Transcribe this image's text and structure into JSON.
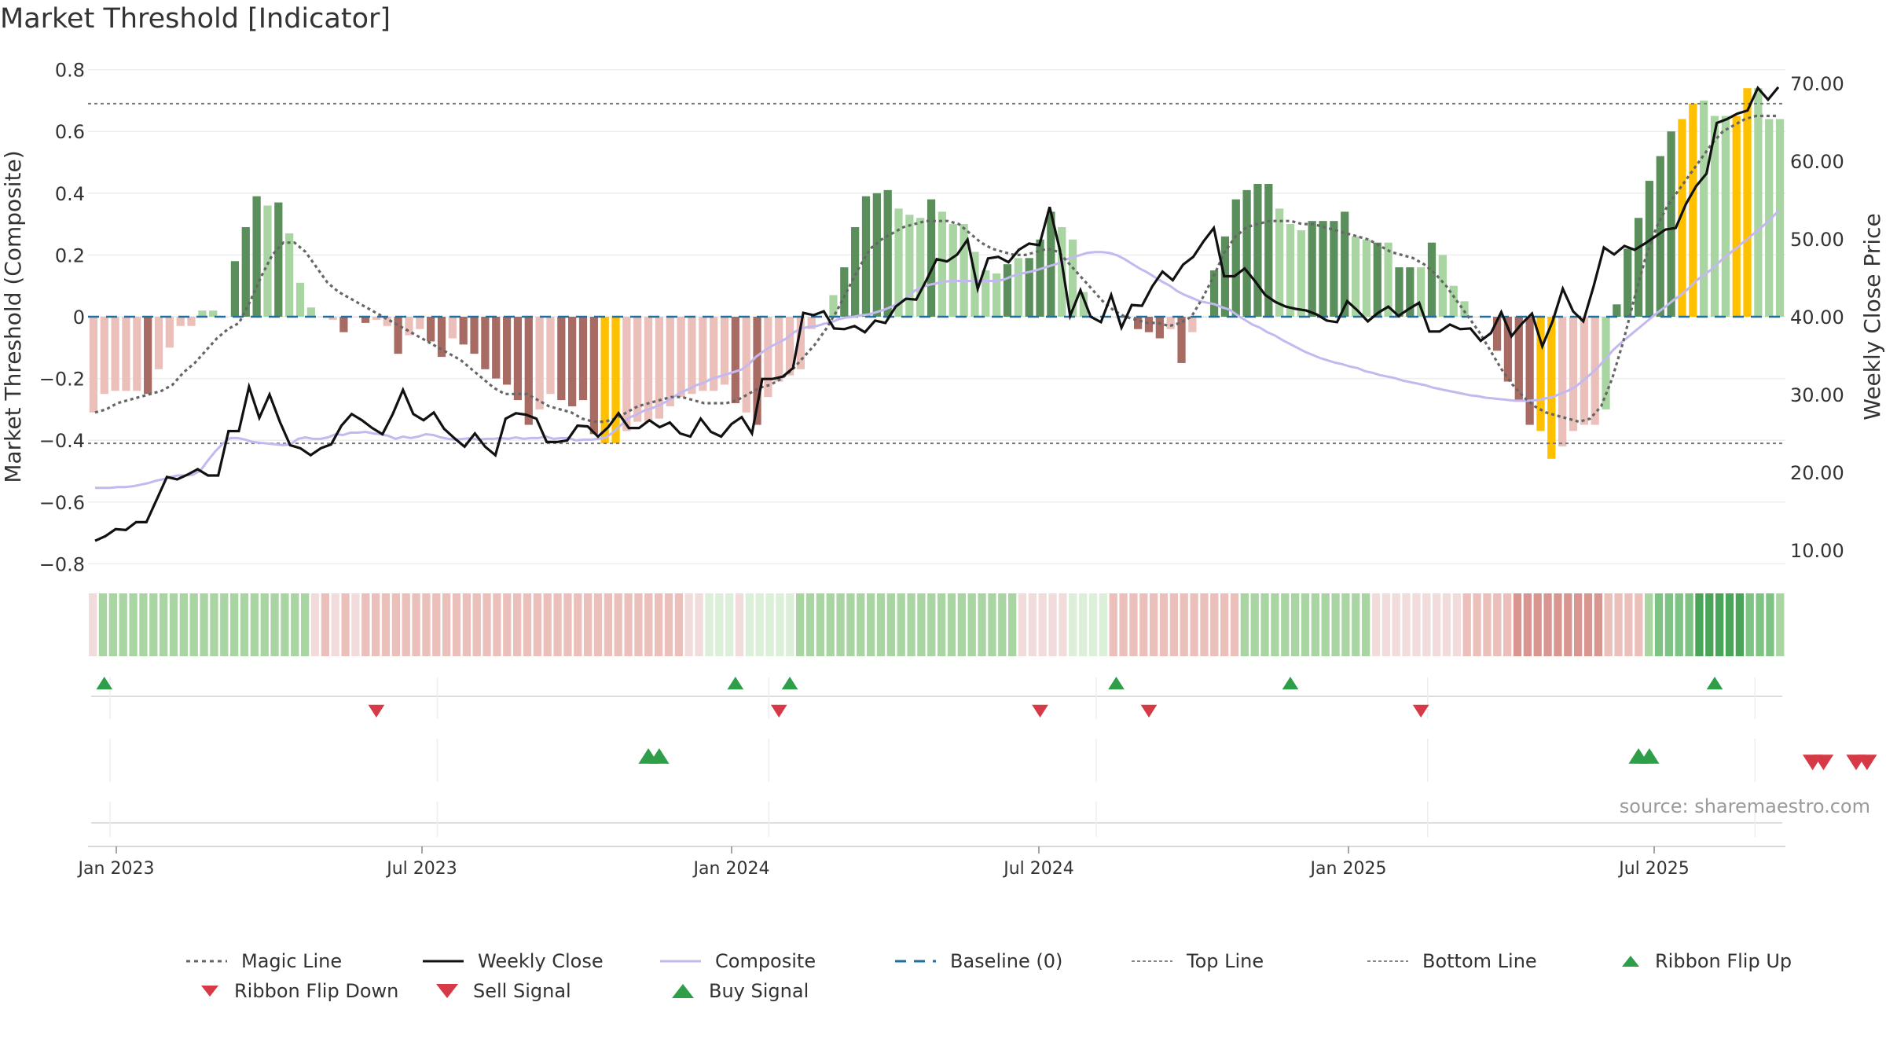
{
  "title": "Market Threshold [Indicator]",
  "source": "source: sharemaestro.com",
  "colors": {
    "dark_green": "#5a8f5c",
    "light_green": "#a8d5a2",
    "dark_red": "#a86b64",
    "light_red": "#ecc0ba",
    "yellow": "#ffc000",
    "magic": "#666666",
    "close": "#111111",
    "composite": "#c3b9ef",
    "baseline": "#1f6f9f",
    "buy": "#2e9e48",
    "sell": "#d63a46"
  },
  "chart_data": {
    "type": "bar",
    "ylabel": "Market Threshold (Composite)",
    "ylabel_right": "Weekly Close Price",
    "left_ticks": [
      "0.8",
      "0.6",
      "0.4",
      "0.2",
      "0",
      "−0.2",
      "−0.4",
      "−0.6",
      "−0.8"
    ],
    "right_ticks": [
      "70.00",
      "60.00",
      "50.00",
      "40.00",
      "30.00",
      "20.00",
      "10.00"
    ],
    "x_ticks": [
      "Jan 2023",
      "Jul 2023",
      "Jan 2024",
      "Jul 2024",
      "Jan 2025",
      "Jul 2025"
    ],
    "top_line": 0.69,
    "bottom_line": -0.41,
    "composite_bars": [
      -0.31,
      -0.25,
      -0.24,
      -0.24,
      -0.24,
      -0.25,
      -0.17,
      -0.1,
      -0.03,
      -0.03,
      0.02,
      0.02,
      0.0,
      0.18,
      0.29,
      0.39,
      0.36,
      0.37,
      0.27,
      0.11,
      0.03,
      0.0,
      -0.01,
      -0.05,
      0.0,
      -0.02,
      -0.01,
      -0.03,
      -0.12,
      -0.06,
      -0.04,
      -0.08,
      -0.13,
      -0.07,
      -0.09,
      -0.12,
      -0.17,
      -0.2,
      -0.22,
      -0.27,
      -0.35,
      -0.3,
      -0.25,
      -0.27,
      -0.29,
      -0.27,
      -0.38,
      -0.41,
      -0.41,
      -0.37,
      -0.34,
      -0.34,
      -0.33,
      -0.29,
      -0.26,
      -0.25,
      -0.24,
      -0.24,
      -0.22,
      -0.28,
      -0.31,
      -0.35,
      -0.26,
      -0.21,
      -0.19,
      -0.17,
      -0.04,
      0.0,
      0.07,
      0.16,
      0.29,
      0.39,
      0.4,
      0.41,
      0.35,
      0.33,
      0.32,
      0.38,
      0.34,
      0.3,
      0.3,
      0.21,
      0.15,
      0.14,
      0.17,
      0.19,
      0.19,
      0.25,
      0.34,
      0.29,
      0.25,
      0.08,
      0.0,
      0.0,
      0.0,
      0.0,
      -0.04,
      -0.05,
      -0.07,
      -0.04,
      -0.15,
      -0.05,
      0.0,
      0.15,
      0.26,
      0.38,
      0.41,
      0.43,
      0.43,
      0.35,
      0.3,
      0.28,
      0.31,
      0.31,
      0.31,
      0.34,
      0.26,
      0.25,
      0.24,
      0.24,
      0.16,
      0.16,
      0.16,
      0.24,
      0.2,
      0.1,
      0.05,
      0.0,
      0.0,
      -0.11,
      -0.21,
      -0.27,
      -0.35,
      -0.37,
      -0.46,
      -0.42,
      -0.37,
      -0.35,
      -0.35,
      -0.3,
      0.04,
      0.22,
      0.32,
      0.44,
      0.52,
      0.6,
      0.64,
      0.69,
      0.7,
      0.65,
      0.65,
      0.65,
      0.74,
      0.74,
      0.64,
      0.64
    ],
    "bar_colors": [
      "lr",
      "lr",
      "lr",
      "lr",
      "lr",
      "dr",
      "lr",
      "lr",
      "lr",
      "lr",
      "lg",
      "lg",
      "lg",
      "dg",
      "dg",
      "dg",
      "lg",
      "dg",
      "lg",
      "lg",
      "lg",
      "lr",
      "lr",
      "dr",
      "lr",
      "dr",
      "lr",
      "lr",
      "dr",
      "lr",
      "lr",
      "dr",
      "dr",
      "lr",
      "dr",
      "dr",
      "dr",
      "dr",
      "dr",
      "dr",
      "dr",
      "lr",
      "lr",
      "dr",
      "dr",
      "dr",
      "dr",
      "y",
      "y",
      "lr",
      "lr",
      "lr",
      "lr",
      "lr",
      "lr",
      "lr",
      "lr",
      "lr",
      "lr",
      "dr",
      "lr",
      "dr",
      "lr",
      "lr",
      "lr",
      "lr",
      "lr",
      "lr",
      "lg",
      "dg",
      "dg",
      "dg",
      "dg",
      "dg",
      "lg",
      "lg",
      "lg",
      "dg",
      "lg",
      "lg",
      "lg",
      "lg",
      "lg",
      "lg",
      "dg",
      "lg",
      "dg",
      "dg",
      "dg",
      "lg",
      "lg",
      "lg",
      "lg",
      "lg",
      "lg",
      "lg",
      "dr",
      "dr",
      "dr",
      "lr",
      "dr",
      "lr",
      "lg",
      "dg",
      "dg",
      "dg",
      "dg",
      "dg",
      "dg",
      "lg",
      "lg",
      "lg",
      "dg",
      "dg",
      "dg",
      "dg",
      "lg",
      "lg",
      "dg",
      "lg",
      "dg",
      "dg",
      "lg",
      "dg",
      "lg",
      "lg",
      "lg",
      "lg",
      "dr",
      "dr",
      "dr",
      "dr",
      "dr",
      "y",
      "y",
      "lr",
      "lr",
      "lr",
      "lr",
      "lg",
      "dg",
      "dg",
      "dg",
      "dg",
      "dg",
      "dg",
      "y",
      "y",
      "lg",
      "lg",
      "lg",
      "y",
      "y",
      "lg",
      "lg"
    ],
    "weekly_close": [
      11.2,
      11.8,
      12.7,
      12.6,
      13.6,
      13.6,
      16.5,
      19.4,
      19.1,
      19.7,
      20.4,
      19.6,
      19.6,
      25.3,
      25.3,
      31.0,
      27.0,
      30.0,
      26.5,
      23.5,
      23.1,
      22.2,
      23.1,
      23.6,
      26.0,
      27.5,
      26.7,
      25.7,
      24.9,
      27.5,
      30.6,
      27.5,
      26.7,
      27.7,
      25.6,
      24.4,
      23.3,
      25.0,
      23.3,
      22.2,
      26.9,
      27.6,
      27.4,
      26.9,
      23.9,
      23.9,
      24.1,
      26.0,
      25.9,
      24.6,
      25.8,
      27.6,
      25.7,
      25.7,
      26.7,
      25.8,
      26.4,
      25.0,
      24.6,
      26.9,
      25.2,
      24.6,
      26.2,
      27.1,
      25.0,
      32.0,
      32.0,
      32.3,
      33.4,
      40.5,
      40.2,
      40.7,
      38.5,
      38.4,
      38.8,
      38.0,
      39.5,
      39.2,
      41.3,
      42.3,
      42.2,
      44.7,
      47.4,
      47.1,
      48.0,
      49.9,
      43.6,
      47.5,
      47.7,
      47.0,
      48.6,
      49.4,
      49.2,
      54.1,
      48.6,
      40.1,
      43.4,
      40.0,
      39.3,
      42.8,
      38.6,
      41.5,
      41.4,
      43.9,
      45.8,
      44.7,
      46.7,
      47.7,
      49.7,
      51.4,
      45.2,
      45.2,
      46.2,
      44.6,
      42.8,
      41.9,
      41.3,
      41.0,
      40.8,
      40.3,
      39.5,
      39.3,
      42.0,
      40.8,
      39.4,
      40.5,
      41.3,
      40.1,
      41.0,
      41.8,
      38.1,
      38.1,
      39.0,
      38.4,
      38.5,
      36.9,
      37.9,
      40.6,
      37.5,
      39.1,
      40.4,
      36.2,
      39.4,
      43.6,
      40.7,
      39.4,
      43.9,
      48.9,
      48.0,
      49.1,
      48.6,
      49.4,
      50.3,
      51.2,
      51.4,
      54.5,
      56.8,
      58.4,
      64.9,
      65.4,
      66.1,
      66.5,
      69.4,
      67.9,
      69.5
    ],
    "composite_line": [
      18.0,
      18.0,
      18.0,
      18.1,
      18.1,
      18.2,
      18.4,
      18.6,
      18.9,
      19.1,
      19.4,
      19.6,
      19.6,
      19.7,
      20.2,
      21.5,
      22.7,
      23.7,
      24.4,
      24.4,
      24.2,
      23.9,
      23.8,
      23.7,
      23.6,
      23.5,
      23.6,
      24.3,
      24.5,
      24.3,
      24.3,
      24.5,
      24.9,
      24.8,
      25.1,
      25.1,
      25.2,
      25.0,
      24.9,
      24.7,
      24.3,
      24.6,
      24.4,
      24.6,
      24.9,
      24.8,
      24.5,
      24.3,
      24.2,
      24.3,
      24.4,
      24.2,
      24.3,
      24.3,
      24.4,
      24.3,
      24.5,
      24.3,
      24.4,
      24.4,
      24.6,
      24.3,
      24.4,
      24.4,
      24.1,
      24.2,
      24.2,
      24.3,
      24.5,
      25.2,
      26.1,
      27.0,
      27.4,
      27.9,
      28.2,
      28.6,
      29.1,
      29.7,
      30.3,
      30.7,
      31.2,
      31.5,
      32.0,
      32.3,
      32.6,
      32.9,
      33.2,
      33.9,
      34.9,
      35.6,
      36.2,
      36.7,
      37.2,
      38.0,
      38.5,
      38.7,
      38.8,
      39.1,
      39.3,
      39.7,
      39.9,
      40.0,
      40.2,
      40.3,
      40.6,
      40.9,
      41.3,
      41.8,
      42.4,
      43.3,
      43.8,
      44.1,
      44.3,
      44.5,
      44.6,
      44.6,
      44.6,
      44.6,
      44.6,
      44.6,
      44.6,
      44.8,
      45.2,
      45.5,
      45.7,
      45.9,
      46.2,
      46.5,
      46.8,
      47.3,
      47.6,
      47.9,
      48.2,
      48.3,
      48.3,
      48.2,
      47.9,
      47.4,
      46.8,
      46.2,
      45.7,
      45.1,
      44.5,
      44.0,
      43.3,
      42.8,
      42.4,
      42.0,
      41.8,
      41.6,
      41.2,
      40.9,
      40.2,
      39.6,
      39.0,
      38.6,
      38.0,
      37.6,
      37.0,
      36.5,
      36.0,
      35.5,
      35.1,
      34.7,
      34.4,
      34.1,
      33.9,
      33.6,
      33.4,
      33.0,
      32.8,
      32.5,
      32.3,
      32.1,
      31.8,
      31.6,
      31.4,
      31.2,
      30.9,
      30.7,
      30.5,
      30.3,
      30.1,
      29.9,
      29.8,
      29.6,
      29.5,
      29.4,
      29.3,
      29.2,
      29.2,
      29.2,
      29.3,
      29.5,
      29.7,
      30.1,
      30.5,
      31.0,
      31.8,
      32.6,
      33.5,
      34.6,
      35.7,
      36.6,
      37.4,
      38.2,
      39.0,
      39.8,
      40.6,
      41.3,
      42.1,
      42.8,
      43.6,
      44.6,
      45.3,
      46.0,
      46.9,
      47.8,
      48.5,
      49.3,
      50.1,
      50.9,
      51.7,
      52.6,
      53.6
    ],
    "magic_line": [
      -0.31,
      -0.3,
      -0.28,
      -0.27,
      -0.26,
      -0.25,
      -0.24,
      -0.22,
      -0.18,
      -0.15,
      -0.11,
      -0.07,
      -0.04,
      -0.02,
      0.05,
      0.13,
      0.2,
      0.24,
      0.24,
      0.21,
      0.16,
      0.11,
      0.08,
      0.06,
      0.04,
      0.02,
      0.0,
      -0.02,
      -0.04,
      -0.06,
      -0.08,
      -0.1,
      -0.12,
      -0.14,
      -0.17,
      -0.2,
      -0.23,
      -0.25,
      -0.25,
      -0.25,
      -0.27,
      -0.29,
      -0.3,
      -0.31,
      -0.33,
      -0.34,
      -0.34,
      -0.33,
      -0.31,
      -0.29,
      -0.28,
      -0.27,
      -0.26,
      -0.26,
      -0.27,
      -0.28,
      -0.28,
      -0.28,
      -0.27,
      -0.25,
      -0.23,
      -0.22,
      -0.2,
      -0.17,
      -0.13,
      -0.09,
      -0.04,
      0.02,
      0.09,
      0.16,
      0.22,
      0.25,
      0.27,
      0.29,
      0.3,
      0.31,
      0.31,
      0.31,
      0.3,
      0.27,
      0.24,
      0.22,
      0.21,
      0.2,
      0.2,
      0.21,
      0.22,
      0.21,
      0.17,
      0.13,
      0.09,
      0.05,
      0.02,
      0.0,
      -0.01,
      -0.02,
      -0.02,
      -0.03,
      -0.02,
      0.0,
      0.06,
      0.13,
      0.21,
      0.26,
      0.29,
      0.3,
      0.31,
      0.31,
      0.31,
      0.3,
      0.3,
      0.29,
      0.28,
      0.27,
      0.26,
      0.25,
      0.23,
      0.21,
      0.2,
      0.19,
      0.17,
      0.14,
      0.1,
      0.05,
      0.0,
      -0.05,
      -0.11,
      -0.17,
      -0.22,
      -0.26,
      -0.29,
      -0.31,
      -0.32,
      -0.33,
      -0.34,
      -0.33,
      -0.29,
      -0.2,
      -0.08,
      0.06,
      0.19,
      0.29,
      0.36,
      0.41,
      0.46,
      0.51,
      0.56,
      0.6,
      0.62,
      0.64,
      0.65,
      0.65,
      0.65
    ],
    "ribbon_colors": [
      "#f2dcdb",
      "#a8d5a2",
      "#a8d5a2",
      "#a8d5a2",
      "#a8d5a2",
      "#a8d5a2",
      "#a8d5a2",
      "#a8d5a2",
      "#a8d5a2",
      "#a8d5a2",
      "#a8d5a2",
      "#a8d5a2",
      "#a8d5a2",
      "#a8d5a2",
      "#a8d5a2",
      "#a8d5a2",
      "#a8d5a2",
      "#a8d5a2",
      "#a8d5a2",
      "#a8d5a2",
      "#a8d5a2",
      "#a8d5a2",
      "#f2dcdb",
      "#ecc0ba",
      "#f2dcdb",
      "#ecc0ba",
      "#f2dcdb",
      "#ecc0ba",
      "#ecc0ba",
      "#ecc0ba",
      "#ecc0ba",
      "#ecc0ba",
      "#ecc0ba",
      "#ecc0ba",
      "#ecc0ba",
      "#ecc0ba",
      "#ecc0ba",
      "#ecc0ba",
      "#ecc0ba",
      "#ecc0ba",
      "#ecc0ba",
      "#ecc0ba",
      "#ecc0ba",
      "#ecc0ba",
      "#ecc0ba",
      "#ecc0ba",
      "#ecc0ba",
      "#ecc0ba",
      "#ecc0ba",
      "#ecc0ba",
      "#ecc0ba",
      "#ecc0ba",
      "#ecc0ba",
      "#ecc0ba",
      "#ecc0ba",
      "#ecc0ba",
      "#ecc0ba",
      "#ecc0ba",
      "#ecc0ba",
      "#f2dcdb",
      "#f2dcdb",
      "#dcefd9",
      "#dcefd9",
      "#dcefd9",
      "#f2dcdb",
      "#dcefd9",
      "#dcefd9",
      "#dcefd9",
      "#dcefd9",
      "#dcefd9",
      "#a8d5a2",
      "#a8d5a2",
      "#a8d5a2",
      "#a8d5a2",
      "#a8d5a2",
      "#a8d5a2",
      "#a8d5a2",
      "#a8d5a2",
      "#a8d5a2",
      "#a8d5a2",
      "#a8d5a2",
      "#a8d5a2",
      "#a8d5a2",
      "#a8d5a2",
      "#a8d5a2",
      "#a8d5a2",
      "#a8d5a2",
      "#a8d5a2",
      "#a8d5a2",
      "#a8d5a2",
      "#a8d5a2",
      "#a8d5a2",
      "#f2dcdb",
      "#f2dcdb",
      "#f2dcdb",
      "#f2dcdb",
      "#f2dcdb",
      "#dcefd9",
      "#dcefd9",
      "#dcefd9",
      "#dcefd9",
      "#ecc0ba",
      "#ecc0ba",
      "#ecc0ba",
      "#ecc0ba",
      "#ecc0ba",
      "#ecc0ba",
      "#ecc0ba",
      "#ecc0ba",
      "#ecc0ba",
      "#ecc0ba",
      "#ecc0ba",
      "#ecc0ba",
      "#ecc0ba",
      "#a8d5a2",
      "#a8d5a2",
      "#a8d5a2",
      "#a8d5a2",
      "#a8d5a2",
      "#a8d5a2",
      "#a8d5a2",
      "#a8d5a2",
      "#a8d5a2",
      "#a8d5a2",
      "#a8d5a2",
      "#a8d5a2",
      "#a8d5a2",
      "#f2dcdb",
      "#f2dcdb",
      "#f2dcdb",
      "#f2dcdb",
      "#f2dcdb",
      "#f2dcdb",
      "#f2dcdb",
      "#f2dcdb",
      "#f2dcdb",
      "#ecc0ba",
      "#ecc0ba",
      "#ecc0ba",
      "#ecc0ba",
      "#ecc0ba",
      "#d99690",
      "#d99690",
      "#d99690",
      "#d99690",
      "#d99690",
      "#d99690",
      "#d99690",
      "#d99690",
      "#d99690",
      "#ecc0ba",
      "#ecc0ba",
      "#ecc0ba",
      "#ecc0ba",
      "#a8d5a2",
      "#7dc383",
      "#7dc383",
      "#7dc383",
      "#7dc383",
      "#4aa55a",
      "#4aa55a",
      "#4aa55a",
      "#4aa55a",
      "#4aa55a",
      "#7dc383",
      "#7dc383",
      "#7dc383",
      "#a8d5a2"
    ],
    "ribbon_flip_up": [
      1,
      59,
      64,
      94,
      110,
      149
    ],
    "ribbon_flip_down": [
      26,
      63,
      87,
      97,
      122
    ],
    "buy_signal": [
      51,
      52,
      142,
      143
    ],
    "sell_signal": [
      158,
      159,
      162,
      163
    ],
    "legend": [
      "Magic Line",
      "Weekly Close",
      "Composite",
      "Baseline (0)",
      "Top Line",
      "Bottom Line",
      "Ribbon Flip Up",
      "Ribbon Flip Down",
      "Sell Signal",
      "Buy Signal"
    ]
  }
}
